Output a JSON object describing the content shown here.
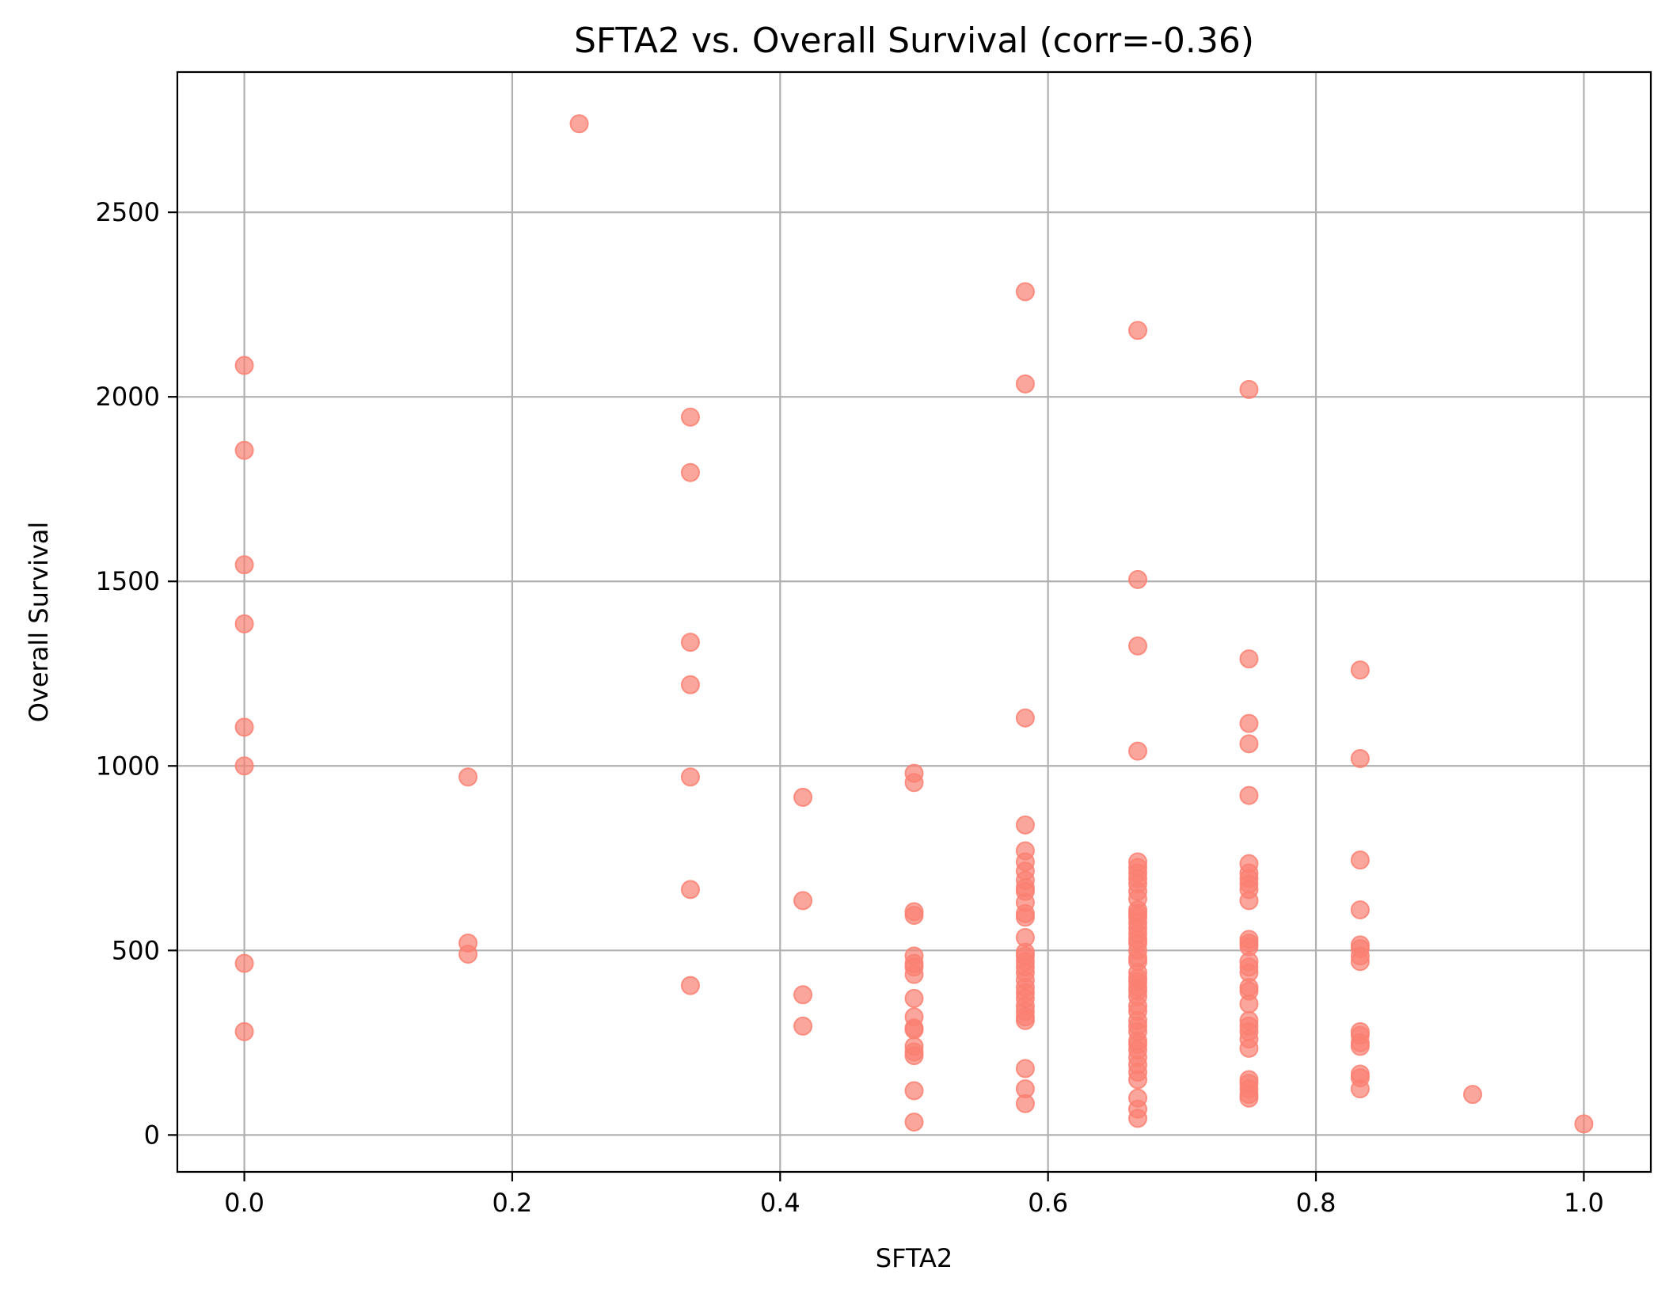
{
  "chart_data": {
    "type": "scatter",
    "title": "SFTA2 vs. Overall Survival (corr=-0.36)",
    "xlabel": "SFTA2",
    "ylabel": "Overall Survival",
    "xlim": [
      -0.05,
      1.05
    ],
    "ylim": [
      -100,
      2880
    ],
    "xticks": [
      0.0,
      0.2,
      0.4,
      0.6,
      0.8,
      1.0
    ],
    "xtick_labels": [
      "0.0",
      "0.2",
      "0.4",
      "0.6",
      "0.8",
      "1.0"
    ],
    "yticks": [
      0,
      500,
      1000,
      1500,
      2000,
      2500
    ],
    "ytick_labels": [
      "0",
      "500",
      "1000",
      "1500",
      "2000",
      "2500"
    ],
    "grid": true,
    "legend": "none",
    "marker_color": "#fa8072",
    "marker_alpha": 0.7,
    "points": [
      [
        0.0,
        2085
      ],
      [
        0.0,
        1855
      ],
      [
        0.0,
        1545
      ],
      [
        0.0,
        1385
      ],
      [
        0.0,
        1105
      ],
      [
        0.0,
        1000
      ],
      [
        0.0,
        465
      ],
      [
        0.0,
        280
      ],
      [
        0.167,
        970
      ],
      [
        0.167,
        520
      ],
      [
        0.167,
        490
      ],
      [
        0.25,
        2740
      ],
      [
        0.333,
        1945
      ],
      [
        0.333,
        1795
      ],
      [
        0.333,
        1335
      ],
      [
        0.333,
        1220
      ],
      [
        0.333,
        970
      ],
      [
        0.333,
        665
      ],
      [
        0.333,
        405
      ],
      [
        0.417,
        915
      ],
      [
        0.417,
        635
      ],
      [
        0.417,
        380
      ],
      [
        0.417,
        295
      ],
      [
        0.5,
        980
      ],
      [
        0.5,
        955
      ],
      [
        0.5,
        605
      ],
      [
        0.5,
        595
      ],
      [
        0.5,
        485
      ],
      [
        0.5,
        465
      ],
      [
        0.5,
        455
      ],
      [
        0.5,
        435
      ],
      [
        0.5,
        370
      ],
      [
        0.5,
        320
      ],
      [
        0.5,
        290
      ],
      [
        0.5,
        285
      ],
      [
        0.5,
        240
      ],
      [
        0.5,
        225
      ],
      [
        0.5,
        215
      ],
      [
        0.5,
        120
      ],
      [
        0.5,
        35
      ],
      [
        0.583,
        2285
      ],
      [
        0.583,
        2035
      ],
      [
        0.583,
        1130
      ],
      [
        0.583,
        840
      ],
      [
        0.583,
        770
      ],
      [
        0.583,
        740
      ],
      [
        0.583,
        715
      ],
      [
        0.583,
        690
      ],
      [
        0.583,
        670
      ],
      [
        0.583,
        660
      ],
      [
        0.583,
        630
      ],
      [
        0.583,
        600
      ],
      [
        0.583,
        590
      ],
      [
        0.583,
        535
      ],
      [
        0.583,
        495
      ],
      [
        0.583,
        485
      ],
      [
        0.583,
        470
      ],
      [
        0.583,
        455
      ],
      [
        0.583,
        440
      ],
      [
        0.583,
        420
      ],
      [
        0.583,
        400
      ],
      [
        0.583,
        385
      ],
      [
        0.583,
        370
      ],
      [
        0.583,
        350
      ],
      [
        0.583,
        335
      ],
      [
        0.583,
        320
      ],
      [
        0.583,
        310
      ],
      [
        0.583,
        180
      ],
      [
        0.583,
        125
      ],
      [
        0.583,
        85
      ],
      [
        0.667,
        2180
      ],
      [
        0.667,
        1505
      ],
      [
        0.667,
        1325
      ],
      [
        0.667,
        1040
      ],
      [
        0.667,
        740
      ],
      [
        0.667,
        725
      ],
      [
        0.667,
        710
      ],
      [
        0.667,
        695
      ],
      [
        0.667,
        680
      ],
      [
        0.667,
        660
      ],
      [
        0.667,
        640
      ],
      [
        0.667,
        610
      ],
      [
        0.667,
        600
      ],
      [
        0.667,
        590
      ],
      [
        0.667,
        575
      ],
      [
        0.667,
        560
      ],
      [
        0.667,
        545
      ],
      [
        0.667,
        530
      ],
      [
        0.667,
        520
      ],
      [
        0.667,
        500
      ],
      [
        0.667,
        480
      ],
      [
        0.667,
        470
      ],
      [
        0.667,
        440
      ],
      [
        0.667,
        425
      ],
      [
        0.667,
        415
      ],
      [
        0.667,
        400
      ],
      [
        0.667,
        390
      ],
      [
        0.667,
        375
      ],
      [
        0.667,
        350
      ],
      [
        0.667,
        335
      ],
      [
        0.667,
        310
      ],
      [
        0.667,
        295
      ],
      [
        0.667,
        280
      ],
      [
        0.667,
        255
      ],
      [
        0.667,
        245
      ],
      [
        0.667,
        230
      ],
      [
        0.667,
        210
      ],
      [
        0.667,
        190
      ],
      [
        0.667,
        170
      ],
      [
        0.667,
        150
      ],
      [
        0.667,
        100
      ],
      [
        0.667,
        70
      ],
      [
        0.667,
        45
      ],
      [
        0.75,
        2020
      ],
      [
        0.75,
        1290
      ],
      [
        0.75,
        1115
      ],
      [
        0.75,
        1060
      ],
      [
        0.75,
        920
      ],
      [
        0.75,
        735
      ],
      [
        0.75,
        710
      ],
      [
        0.75,
        695
      ],
      [
        0.75,
        680
      ],
      [
        0.75,
        665
      ],
      [
        0.75,
        635
      ],
      [
        0.75,
        530
      ],
      [
        0.75,
        520
      ],
      [
        0.75,
        510
      ],
      [
        0.75,
        470
      ],
      [
        0.75,
        455
      ],
      [
        0.75,
        440
      ],
      [
        0.75,
        400
      ],
      [
        0.75,
        390
      ],
      [
        0.75,
        355
      ],
      [
        0.75,
        310
      ],
      [
        0.75,
        295
      ],
      [
        0.75,
        280
      ],
      [
        0.75,
        260
      ],
      [
        0.75,
        235
      ],
      [
        0.75,
        150
      ],
      [
        0.75,
        140
      ],
      [
        0.75,
        125
      ],
      [
        0.75,
        110
      ],
      [
        0.75,
        100
      ],
      [
        0.833,
        1260
      ],
      [
        0.833,
        1020
      ],
      [
        0.833,
        745
      ],
      [
        0.833,
        610
      ],
      [
        0.833,
        515
      ],
      [
        0.833,
        505
      ],
      [
        0.833,
        485
      ],
      [
        0.833,
        470
      ],
      [
        0.833,
        280
      ],
      [
        0.833,
        270
      ],
      [
        0.833,
        250
      ],
      [
        0.833,
        240
      ],
      [
        0.833,
        165
      ],
      [
        0.833,
        155
      ],
      [
        0.833,
        125
      ],
      [
        0.917,
        110
      ],
      [
        1.0,
        30
      ]
    ]
  }
}
